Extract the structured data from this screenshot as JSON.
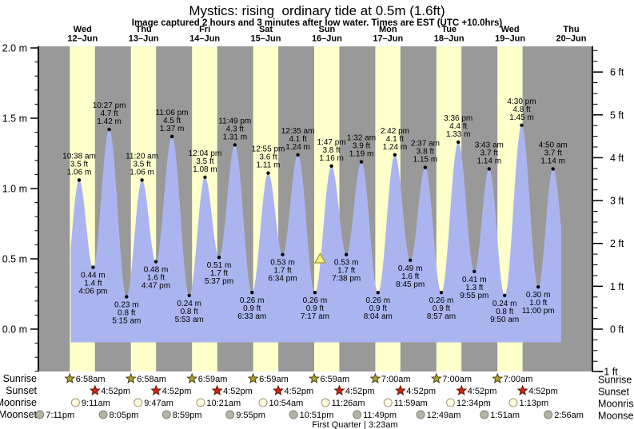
{
  "header": {
    "title": "Mystics: rising  ordinary tide at 0.5m (1.6ft)",
    "subtitle": "Image captured 2 hours and 3 minutes after low water. Times are EST (UTC +10.0hrs)"
  },
  "chart_data": {
    "type": "area",
    "title": "Mystics: rising  ordinary tide at 0.5m (1.6ft)",
    "ylabel_left": "meters",
    "ylabel_right": "feet",
    "ylim_m": [
      -0.3,
      2.0
    ],
    "days": [
      {
        "name": "Wed",
        "date": "12–Jun"
      },
      {
        "name": "Thu",
        "date": "13–Jun"
      },
      {
        "name": "Fri",
        "date": "14–Jun"
      },
      {
        "name": "Sat",
        "date": "15–Jun"
      },
      {
        "name": "Sun",
        "date": "16–Jun"
      },
      {
        "name": "Mon",
        "date": "17–Jun"
      },
      {
        "name": "Tue",
        "date": "18–Jun"
      },
      {
        "name": "Wed",
        "date": "19–Jun"
      },
      {
        "name": "Thu",
        "date": "20–Jun"
      }
    ],
    "left_axis_ticks": [
      {
        "label": "2.0 m",
        "value": 2.0
      },
      {
        "label": "1.5 m",
        "value": 1.5
      },
      {
        "label": "1.0 m",
        "value": 1.0
      },
      {
        "label": "0.5 m",
        "value": 0.5
      },
      {
        "label": "0.0 m",
        "value": 0.0
      }
    ],
    "right_axis_ticks": [
      {
        "label": "6 ft",
        "value": 6
      },
      {
        "label": "5 ft",
        "value": 5
      },
      {
        "label": "4 ft",
        "value": 4
      },
      {
        "label": "3 ft",
        "value": 3
      },
      {
        "label": "2 ft",
        "value": 2
      },
      {
        "label": "1 ft",
        "value": 1
      },
      {
        "label": "0 ft",
        "value": 0
      },
      {
        "label": "−1 ft",
        "value": -1
      }
    ],
    "tide_events": [
      {
        "type": "high",
        "time": "10:38 am",
        "feet": "3.5 ft",
        "meters": "1.06 m",
        "height_m": 1.06,
        "t": 10.633
      },
      {
        "type": "low",
        "time": "4:06 pm",
        "feet": "1.4 ft",
        "meters": "0.44 m",
        "height_m": 0.44,
        "t": 16.1
      },
      {
        "type": "high",
        "time": "10:27 pm",
        "feet": "4.7 ft",
        "meters": "1.42 m",
        "height_m": 1.42,
        "t": 22.45
      },
      {
        "type": "low",
        "time": "5:15 am",
        "feet": "0.8 ft",
        "meters": "0.23 m",
        "height_m": 0.23,
        "t": 29.25
      },
      {
        "type": "high",
        "time": "11:20 am",
        "feet": "3.5 ft",
        "meters": "1.06 m",
        "height_m": 1.06,
        "t": 35.333
      },
      {
        "type": "low",
        "time": "4:47 pm",
        "feet": "1.6 ft",
        "meters": "0.48 m",
        "height_m": 0.48,
        "t": 40.783
      },
      {
        "type": "high",
        "time": "11:06 pm",
        "feet": "4.5 ft",
        "meters": "1.37 m",
        "height_m": 1.37,
        "t": 47.1
      },
      {
        "type": "low",
        "time": "5:53 am",
        "feet": "0.8 ft",
        "meters": "0.24 m",
        "height_m": 0.24,
        "t": 53.883
      },
      {
        "type": "high",
        "time": "12:04 pm",
        "feet": "3.5 ft",
        "meters": "1.08 m",
        "height_m": 1.08,
        "t": 60.067
      },
      {
        "type": "low",
        "time": "5:37 pm",
        "feet": "1.7 ft",
        "meters": "0.51 m",
        "height_m": 0.51,
        "t": 65.617
      },
      {
        "type": "high",
        "time": "11:49 pm",
        "feet": "4.3 ft",
        "meters": "1.31 m",
        "height_m": 1.31,
        "t": 71.817
      },
      {
        "type": "low",
        "time": "6:33 am",
        "feet": "0.9 ft",
        "meters": "0.26 m",
        "height_m": 0.26,
        "t": 78.55
      },
      {
        "type": "high",
        "time": "12:55 pm",
        "feet": "3.6 ft",
        "meters": "1.11 m",
        "height_m": 1.11,
        "t": 84.917
      },
      {
        "type": "low",
        "time": "6:34 pm",
        "feet": "1.7 ft",
        "meters": "0.53 m",
        "height_m": 0.53,
        "t": 90.567
      },
      {
        "type": "high",
        "time": "12:35 am",
        "feet": "4.1 ft",
        "meters": "1.24 m",
        "height_m": 1.24,
        "t": 96.583
      },
      {
        "type": "low",
        "time": "7:17 am",
        "feet": "0.9 ft",
        "meters": "0.26 m",
        "height_m": 0.26,
        "t": 103.283
      },
      {
        "type": "high",
        "time": "1:47 pm",
        "feet": "3.8 ft",
        "meters": "1.16 m",
        "height_m": 1.16,
        "t": 109.783
      },
      {
        "type": "low",
        "time": "7:38 pm",
        "feet": "1.7 ft",
        "meters": "0.53 m",
        "height_m": 0.53,
        "t": 115.633
      },
      {
        "type": "high",
        "time": "1:32 am",
        "feet": "3.9 ft",
        "meters": "1.19 m",
        "height_m": 1.19,
        "t": 121.533
      },
      {
        "type": "low",
        "time": "8:04 am",
        "feet": "0.9 ft",
        "meters": "0.26 m",
        "height_m": 0.26,
        "t": 128.067
      },
      {
        "type": "high",
        "time": "2:42 pm",
        "feet": "4.1 ft",
        "meters": "1.24 m",
        "height_m": 1.24,
        "t": 134.7
      },
      {
        "type": "low",
        "time": "8:45 pm",
        "feet": "1.6 ft",
        "meters": "0.49 m",
        "height_m": 0.49,
        "t": 140.75
      },
      {
        "type": "high",
        "time": "2:37 am",
        "feet": "3.8 ft",
        "meters": "1.15 m",
        "height_m": 1.15,
        "t": 146.617
      },
      {
        "type": "low",
        "time": "8:57 am",
        "feet": "0.9 ft",
        "meters": "0.26 m",
        "height_m": 0.26,
        "t": 152.95
      },
      {
        "type": "high",
        "time": "3:36 pm",
        "feet": "4.4 ft",
        "meters": "1.33 m",
        "height_m": 1.33,
        "t": 159.6
      },
      {
        "type": "low",
        "time": "9:55 pm",
        "feet": "1.3 ft",
        "meters": "0.41 m",
        "height_m": 0.41,
        "t": 165.917
      },
      {
        "type": "high",
        "time": "3:43 am",
        "feet": "3.7 ft",
        "meters": "1.14 m",
        "height_m": 1.14,
        "t": 171.717
      },
      {
        "type": "low",
        "time": "9:50 am",
        "feet": "0.8 ft",
        "meters": "0.24 m",
        "height_m": 0.24,
        "t": 177.833
      },
      {
        "type": "high",
        "time": "4:30 pm",
        "feet": "4.8 ft",
        "meters": "1.45 m",
        "height_m": 1.45,
        "t": 184.5
      },
      {
        "type": "low",
        "time": "11:00 pm",
        "feet": "1.0 ft",
        "meters": "0.30 m",
        "height_m": 0.3,
        "t": 191.0
      },
      {
        "type": "high",
        "time": "4:50 am",
        "feet": "3.7 ft",
        "meters": "1.14 m",
        "height_m": 1.14,
        "t": 196.833
      }
    ],
    "current_marker": {
      "shape": "triangle",
      "t": 105.33,
      "height_m": 0.5
    },
    "curve": {
      "visible_start_t": 7.33,
      "visible_end_t": 200.0,
      "pre_anchor": {
        "t": 4.6,
        "h": 0.22
      },
      "post_anchor": {
        "t": 202.8,
        "h": 0.38
      },
      "baseline_m": -0.094
    },
    "colors": {
      "night": "#999999",
      "daylight": "#ffffcc",
      "tide_fill": "#aab5f0",
      "date_red": "#e8341c",
      "sunrise_star": "#aea22c",
      "sunrise_star_stroke": "#4a4410",
      "sunset_star": "#d62511",
      "sunset_star_stroke": "#5a1400",
      "moonrise_circle": "#ffffe0",
      "moonrise_circle_stroke": "#99997a",
      "moonset_circle": "#b4b4a4",
      "moonset_circle_stroke": "#82827a",
      "marker_fill": "#f0ee80",
      "marker_stroke": "#99992e"
    }
  },
  "astro": {
    "row_labels": [
      "Sunrise",
      "Sunset",
      "Moonrise",
      "Moonset"
    ],
    "sunrise": [
      {
        "label": "6:58am",
        "t": 6.967
      },
      {
        "label": "6:58am",
        "t": 30.967
      },
      {
        "label": "6:59am",
        "t": 54.983
      },
      {
        "label": "6:59am",
        "t": 78.983
      },
      {
        "label": "6:59am",
        "t": 102.983
      },
      {
        "label": "7:00am",
        "t": 127.0
      },
      {
        "label": "7:00am",
        "t": 151.0
      },
      {
        "label": "7:00am",
        "t": 175.0
      }
    ],
    "sunset": [
      {
        "label": "4:52pm",
        "t": 16.867
      },
      {
        "label": "4:52pm",
        "t": 40.867
      },
      {
        "label": "4:52pm",
        "t": 64.867
      },
      {
        "label": "4:52pm",
        "t": 88.867
      },
      {
        "label": "4:52pm",
        "t": 112.867
      },
      {
        "label": "4:52pm",
        "t": 136.867
      },
      {
        "label": "4:52pm",
        "t": 160.867
      },
      {
        "label": "4:52pm",
        "t": 184.867
      }
    ],
    "moonrise": [
      {
        "label": "9:11am",
        "t": 9.183
      },
      {
        "label": "9:47am",
        "t": 33.783
      },
      {
        "label": "10:21am",
        "t": 58.35
      },
      {
        "label": "10:54am",
        "t": 82.9
      },
      {
        "label": "11:26am",
        "t": 107.433
      },
      {
        "label": "11:59am",
        "t": 131.983
      },
      {
        "label": "12:34pm",
        "t": 156.567
      },
      {
        "label": "1:13pm",
        "t": 181.217
      }
    ],
    "moonset": [
      {
        "label": "7:11pm",
        "t": -4.817
      },
      {
        "label": "8:05pm",
        "t": 20.083
      },
      {
        "label": "8:59pm",
        "t": 44.983
      },
      {
        "label": "9:55pm",
        "t": 69.917
      },
      {
        "label": "10:51pm",
        "t": 94.85
      },
      {
        "label": "11:49pm",
        "t": 119.817
      },
      {
        "label": "12:49am",
        "t": 144.817
      },
      {
        "label": "1:51am",
        "t": 169.85
      },
      {
        "label": "2:56am",
        "t": 194.933
      }
    ],
    "moon_phase": "First Quarter | 3:23am"
  }
}
